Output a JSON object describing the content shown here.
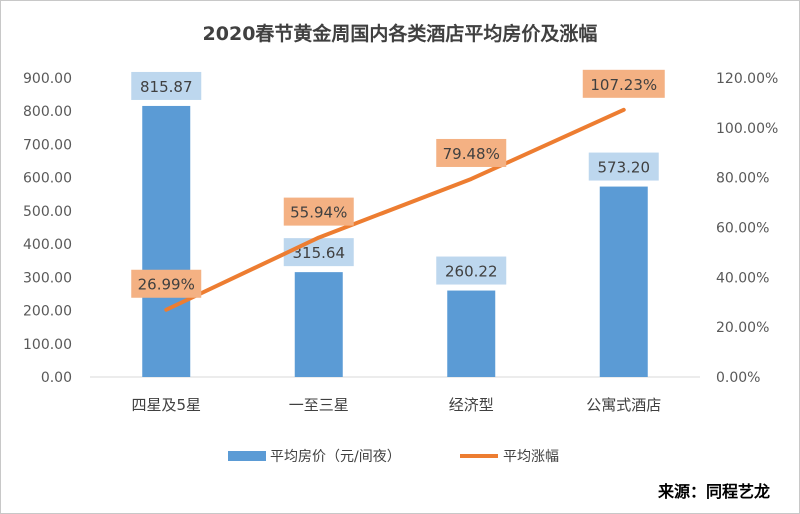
{
  "chart_data": {
    "type": "bar",
    "title": "2020春节黄金周国内各类酒店平均房价及涨幅",
    "categories": [
      "四星及5星",
      "一至三星",
      "经济型",
      "公寓式酒店"
    ],
    "series": [
      {
        "name": "平均房价（元/间夜）",
        "type": "bar",
        "axis": "left",
        "values": [
          815.87,
          315.64,
          260.22,
          573.2
        ],
        "labels": [
          "815.87",
          "315.64",
          "260.22",
          "573.20"
        ]
      },
      {
        "name": "平均涨幅",
        "type": "line",
        "axis": "right",
        "values": [
          26.99,
          55.94,
          79.48,
          107.23
        ],
        "labels": [
          "26.99%",
          "55.94%",
          "79.48%",
          "107.23%"
        ]
      }
    ],
    "y_left": {
      "ylim": [
        0,
        900
      ],
      "ticks": [
        "0.00",
        "100.00",
        "200.00",
        "300.00",
        "400.00",
        "500.00",
        "600.00",
        "700.00",
        "800.00",
        "900.00"
      ]
    },
    "y_right": {
      "ylim": [
        0,
        120
      ],
      "ticks": [
        "0.00%",
        "20.00%",
        "40.00%",
        "60.00%",
        "80.00%",
        "100.00%",
        "120.00%"
      ]
    },
    "grid": false,
    "legend": "bottom",
    "source": "来源：同程艺龙",
    "colors": {
      "bar": "#5b9bd5",
      "line": "#ed7d31",
      "bar_label_bg": "#bdd7ee",
      "line_label_bg": "#f4b183"
    }
  }
}
